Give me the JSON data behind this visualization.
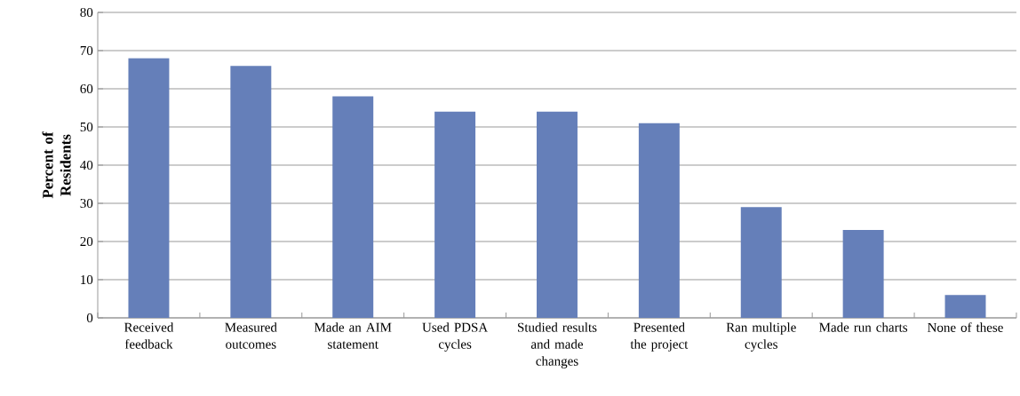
{
  "chart_data": {
    "type": "bar",
    "ylabel": "Percent of Residents",
    "categories": [
      "Received feedback",
      "Measured outcomes",
      "Made an AIM statement",
      "Used PDSA cycles",
      "Studied results and made changes",
      "Presented the project",
      "Ran multiple cycles",
      "Made run charts",
      "None of these"
    ],
    "values": [
      68,
      66,
      58,
      54,
      54,
      51,
      29,
      23,
      6
    ],
    "color": "#657fb9",
    "ylim": [
      0,
      80
    ],
    "yticks": [
      0,
      10,
      20,
      30,
      40,
      50,
      60,
      70,
      80
    ],
    "grid": "y"
  }
}
